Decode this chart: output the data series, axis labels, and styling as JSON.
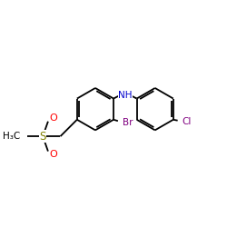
{
  "background_color": "#ffffff",
  "atom_colors": {
    "C": "#000000",
    "N": "#0000cd",
    "O": "#ff0000",
    "S": "#808000",
    "Br": "#800080",
    "Cl": "#800080"
  },
  "bond_color": "#000000",
  "bond_lw": 1.3,
  "dbo": 0.022,
  "figsize": [
    2.5,
    2.5
  ],
  "dpi": 100,
  "xlim": [
    0.0,
    2.5
  ],
  "ylim": [
    0.4,
    2.1
  ]
}
